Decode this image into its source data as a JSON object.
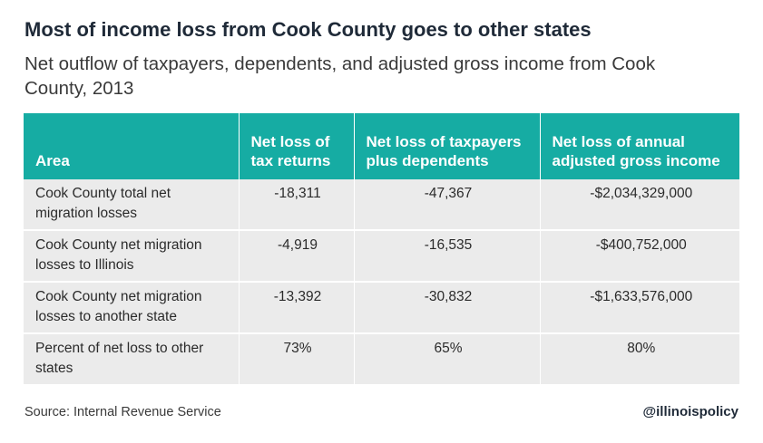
{
  "chart_data": {
    "type": "table",
    "title": "Most of income loss from Cook County goes to other states",
    "subtitle": "Net outflow of taxpayers, dependents, and adjusted gross income from Cook County, 2013",
    "columns": [
      "Area",
      "Net loss of tax returns",
      "Net loss of taxpayers plus dependents",
      "Net loss of annual adjusted gross income"
    ],
    "rows": [
      [
        "Cook County total net migration losses",
        "-18,311",
        "-47,367",
        "-$2,034,329,000"
      ],
      [
        "Cook County net migration losses to Illinois",
        "-4,919",
        "-16,535",
        "-$400,752,000"
      ],
      [
        "Cook County net migration losses to another state",
        "-13,392",
        "-30,832",
        "-$1,633,576,000"
      ],
      [
        "Percent of net loss to other states",
        "73%",
        "65%",
        "80%"
      ]
    ],
    "source": "Source: Internal Revenue Service",
    "credit": "@illinoispolicy"
  },
  "colors": {
    "header": "#16aca3",
    "row": "#ebebeb",
    "title": "#1f2a38"
  }
}
